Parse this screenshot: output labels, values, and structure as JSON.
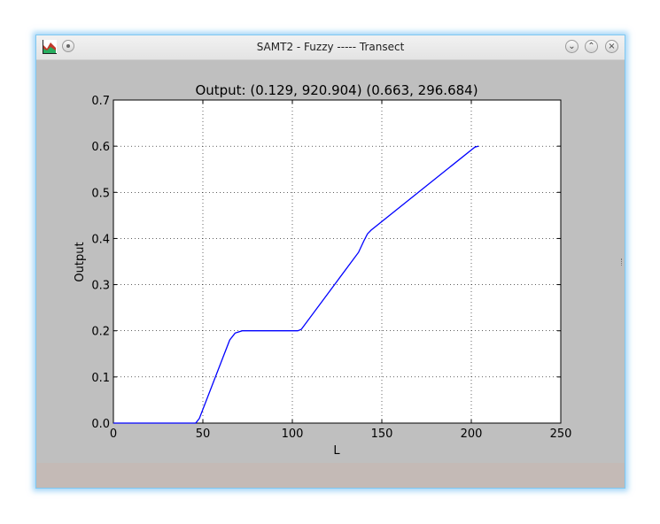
{
  "window": {
    "title": "SAMT2 - Fuzzy ----- Transect",
    "icons": {
      "app": "chart-app-icon",
      "menu": "window-menu-icon",
      "minimize": "minimize-icon",
      "maximize": "maximize-icon",
      "close": "close-icon"
    },
    "buttons": {
      "minimize": "⌄",
      "maximize": "⌃",
      "close": "×"
    }
  },
  "colors": {
    "line": "#0000ff",
    "plot_bg": "#ffffff",
    "figure_bg": "#bfbfbf",
    "grid": "#000000"
  },
  "chart_data": {
    "type": "line",
    "title": "Output: (0.129, 920.904)  (0.663, 296.684)",
    "xlabel": "L",
    "ylabel": "Output",
    "xlim": [
      0,
      250
    ],
    "ylim": [
      0,
      0.7
    ],
    "xticks": [
      "0",
      "50",
      "100",
      "150",
      "200",
      "250"
    ],
    "yticks": [
      "0.0",
      "0.1",
      "0.2",
      "0.3",
      "0.4",
      "0.5",
      "0.6",
      "0.7"
    ],
    "grid": true,
    "series": [
      {
        "x": [
          0,
          46,
          48,
          65,
          68,
          72,
          103,
          105,
          137,
          140,
          142,
          144,
          202,
          204
        ],
        "y": [
          0,
          0,
          0.01,
          0.18,
          0.195,
          0.2,
          0.2,
          0.203,
          0.37,
          0.395,
          0.41,
          0.418,
          0.598,
          0.6
        ]
      }
    ]
  }
}
